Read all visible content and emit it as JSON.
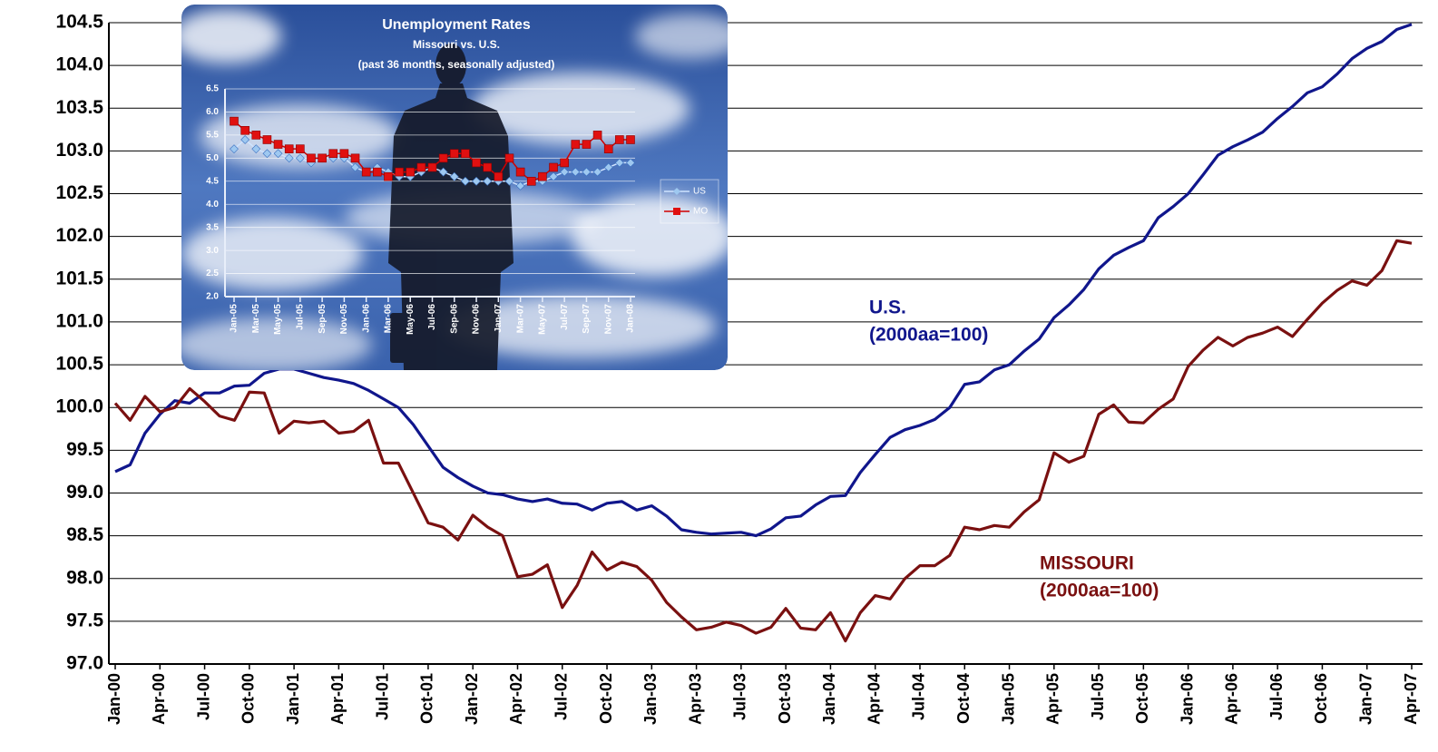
{
  "chart_data": [
    {
      "type": "line",
      "categories": [
        "Jan-00",
        null,
        null,
        "Apr-00",
        null,
        null,
        "Jul-00",
        null,
        null,
        "Oct-00",
        null,
        null,
        "Jan-01",
        null,
        null,
        "Apr-01",
        null,
        null,
        "Jul-01",
        null,
        null,
        "Oct-01",
        null,
        null,
        "Jan-02",
        null,
        null,
        "Apr-02",
        null,
        null,
        "Jul-02",
        null,
        null,
        "Oct-02",
        null,
        null,
        "Jan-03",
        null,
        null,
        "Apr-03",
        null,
        null,
        "Jul-03",
        null,
        null,
        "Oct-03",
        null,
        null,
        "Jan-04",
        null,
        null,
        "Apr-04",
        null,
        null,
        "Jul-04",
        null,
        null,
        "Oct-04",
        null,
        null,
        "Jan-05",
        null,
        null,
        "Apr-05",
        null,
        null,
        "Jul-05",
        null,
        null,
        "Oct-05",
        null,
        null,
        "Jan-06",
        null,
        null,
        "Apr-06",
        null,
        null,
        "Jul-06",
        null,
        null,
        "Oct-06",
        null,
        null,
        "Jan-07",
        null,
        null,
        "Apr-07"
      ],
      "series": [
        {
          "name": "U.S.",
          "note": "(2000aa=100)",
          "color": "#10168c",
          "values": [
            99.25,
            99.33,
            99.7,
            99.92,
            100.08,
            100.05,
            100.17,
            100.17,
            100.25,
            100.26,
            100.4,
            100.45,
            100.45,
            100.4,
            100.35,
            100.32,
            100.28,
            100.2,
            100.1,
            100.0,
            99.8,
            99.55,
            99.3,
            99.18,
            99.08,
            99.0,
            98.98,
            98.93,
            98.9,
            98.93,
            98.88,
            98.87,
            98.8,
            98.88,
            98.9,
            98.8,
            98.85,
            98.73,
            98.57,
            98.54,
            98.52,
            98.53,
            98.54,
            98.5,
            98.58,
            98.71,
            98.73,
            98.86,
            98.96,
            98.97,
            99.24,
            99.45,
            99.65,
            99.74,
            99.79,
            99.86,
            100.0,
            100.27,
            100.3,
            100.44,
            100.5,
            100.66,
            100.8,
            101.05,
            101.2,
            101.38,
            101.62,
            101.78,
            101.87,
            101.95,
            102.22,
            102.35,
            102.5,
            102.72,
            102.95,
            103.05,
            103.13,
            103.22,
            103.38,
            103.52,
            103.68,
            103.75,
            103.9,
            104.08,
            104.2,
            104.28,
            104.42,
            104.48
          ]
        },
        {
          "name": "MISSOURI",
          "note": "(2000aa=100)",
          "color": "#7a1010",
          "values": [
            100.05,
            99.85,
            100.13,
            99.95,
            100.0,
            100.22,
            100.07,
            99.9,
            99.85,
            100.18,
            100.17,
            99.7,
            99.84,
            99.82,
            99.84,
            99.7,
            99.72,
            99.85,
            99.35,
            99.35,
            99.0,
            98.65,
            98.6,
            98.45,
            98.74,
            98.6,
            98.5,
            98.02,
            98.05,
            98.16,
            97.66,
            97.92,
            98.31,
            98.1,
            98.19,
            98.14,
            97.98,
            97.72,
            97.55,
            97.4,
            97.43,
            97.49,
            97.45,
            97.36,
            97.43,
            97.65,
            97.42,
            97.4,
            97.6,
            97.27,
            97.6,
            97.8,
            97.76,
            98.0,
            98.15,
            98.15,
            98.27,
            98.6,
            98.57,
            98.62,
            98.6,
            98.78,
            98.92,
            99.47,
            99.36,
            99.43,
            99.92,
            100.03,
            99.83,
            99.82,
            99.98,
            100.1,
            100.48,
            100.67,
            100.82,
            100.72,
            100.82,
            100.87,
            100.94,
            100.83,
            101.03,
            101.22,
            101.37,
            101.48,
            101.43,
            101.6,
            101.95,
            101.92
          ]
        }
      ],
      "ylim": [
        97,
        104.5
      ],
      "yticks": [
        {
          "value": 97,
          "label": "97.0"
        },
        97.5,
        {
          "value": 98,
          "label": "98.0"
        },
        98.5,
        {
          "value": 99,
          "label": "99.0"
        },
        99.5,
        {
          "value": 100,
          "label": "100.0"
        },
        100.5,
        {
          "value": 101,
          "label": "101.0"
        },
        101.5,
        {
          "value": 102,
          "label": "102.0"
        },
        102.5,
        {
          "value": 103,
          "label": "103.0"
        },
        103.5,
        {
          "value": 104,
          "label": "104.0"
        },
        104.5
      ],
      "grid": true
    },
    {
      "type": "line",
      "title": "Unemployment Rates",
      "subtitle": "Missouri vs. U.S.",
      "note": "(past 36 months, seasonally adjusted)",
      "categories": [
        "Jan-05",
        null,
        "Mar-05",
        null,
        "May-05",
        null,
        "Jul-05",
        null,
        "Sep-05",
        null,
        "Nov-05",
        null,
        "Jan-06",
        null,
        "Mar-06",
        null,
        "May-06",
        null,
        "Jul-06",
        null,
        "Sep-06",
        null,
        "Nov-06",
        null,
        "Jan-07",
        null,
        "Mar-07",
        null,
        "May-07",
        null,
        "Jul-07",
        null,
        "Sep-07",
        null,
        "Nov-07",
        null,
        "Jan-08"
      ],
      "series": [
        {
          "name": "US",
          "color": "#9ec8f0",
          "marker": "diamond",
          "values": [
            5.2,
            5.4,
            5.2,
            5.1,
            5.1,
            5.0,
            5.0,
            4.9,
            5.0,
            5.0,
            5.0,
            4.8,
            4.7,
            4.8,
            4.7,
            4.6,
            4.6,
            4.7,
            4.8,
            4.7,
            4.6,
            4.5,
            4.5,
            4.5,
            4.5,
            4.5,
            4.4,
            4.5,
            4.5,
            4.6,
            4.7,
            4.7,
            4.7,
            4.7,
            4.8,
            4.9,
            4.9
          ]
        },
        {
          "name": "MO",
          "color": "#e01010",
          "marker": "square",
          "values": [
            5.8,
            5.6,
            5.5,
            5.4,
            5.3,
            5.2,
            5.2,
            5.0,
            5.0,
            5.1,
            5.1,
            5.0,
            4.7,
            4.7,
            4.6,
            4.7,
            4.7,
            4.8,
            4.8,
            5.0,
            5.1,
            5.1,
            4.9,
            4.8,
            4.6,
            5.0,
            4.7,
            4.5,
            4.6,
            4.8,
            4.9,
            5.3,
            5.3,
            5.5,
            5.2,
            5.4,
            5.4
          ]
        }
      ],
      "ylim": [
        2,
        6.5
      ],
      "yticks": [
        {
          "value": 2,
          "label": "2.0"
        },
        2.5,
        {
          "value": 3,
          "label": "3.0"
        },
        3.5,
        {
          "value": 4,
          "label": "4.0"
        },
        4.5,
        {
          "value": 5,
          "label": "5.0"
        },
        5.5,
        {
          "value": 6,
          "label": "6.0"
        },
        6.5
      ],
      "grid": true,
      "legend": "right"
    }
  ]
}
